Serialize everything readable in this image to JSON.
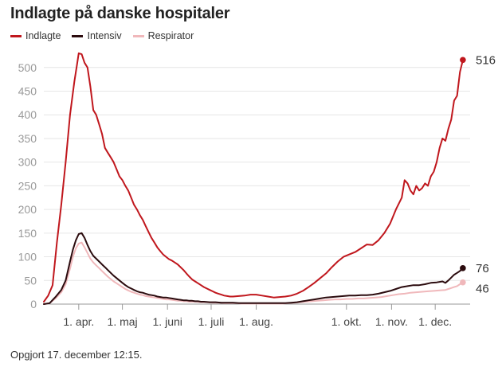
{
  "chart_data": {
    "type": "line",
    "title": "Indlagte på danske hospitaler",
    "footnote": "Opgjort 17. december 12:15.",
    "ylim": [
      0,
      540
    ],
    "y_ticks": [
      0,
      50,
      100,
      150,
      200,
      250,
      300,
      350,
      400,
      450,
      500
    ],
    "x_domain": [
      0,
      293
    ],
    "x_ticks": [
      {
        "day": 24,
        "label": "1. apr."
      },
      {
        "day": 54,
        "label": "1. maj"
      },
      {
        "day": 85,
        "label": "1. juni"
      },
      {
        "day": 115,
        "label": "1. juli"
      },
      {
        "day": 146,
        "label": "1. aug."
      },
      {
        "day": 208,
        "label": "1. okt."
      },
      {
        "day": 239,
        "label": "1. nov."
      },
      {
        "day": 269,
        "label": "1. dec."
      }
    ],
    "series": [
      {
        "name": "Indlagte",
        "color": "#c0171d",
        "end_label": "516",
        "points": [
          [
            0,
            5
          ],
          [
            3,
            18
          ],
          [
            6,
            40
          ],
          [
            9,
            130
          ],
          [
            12,
            210
          ],
          [
            15,
            300
          ],
          [
            18,
            400
          ],
          [
            21,
            470
          ],
          [
            23,
            510
          ],
          [
            24,
            530
          ],
          [
            26,
            528
          ],
          [
            28,
            510
          ],
          [
            30,
            500
          ],
          [
            32,
            460
          ],
          [
            34,
            410
          ],
          [
            36,
            400
          ],
          [
            38,
            380
          ],
          [
            40,
            360
          ],
          [
            42,
            330
          ],
          [
            44,
            320
          ],
          [
            46,
            310
          ],
          [
            48,
            300
          ],
          [
            50,
            285
          ],
          [
            52,
            270
          ],
          [
            54,
            262
          ],
          [
            56,
            250
          ],
          [
            58,
            240
          ],
          [
            60,
            225
          ],
          [
            62,
            210
          ],
          [
            64,
            200
          ],
          [
            66,
            188
          ],
          [
            68,
            178
          ],
          [
            70,
            165
          ],
          [
            72,
            152
          ],
          [
            74,
            140
          ],
          [
            76,
            130
          ],
          [
            78,
            120
          ],
          [
            80,
            112
          ],
          [
            82,
            105
          ],
          [
            84,
            100
          ],
          [
            86,
            95
          ],
          [
            88,
            92
          ],
          [
            90,
            88
          ],
          [
            92,
            84
          ],
          [
            94,
            78
          ],
          [
            96,
            72
          ],
          [
            98,
            65
          ],
          [
            100,
            58
          ],
          [
            102,
            52
          ],
          [
            104,
            48
          ],
          [
            106,
            44
          ],
          [
            108,
            40
          ],
          [
            110,
            36
          ],
          [
            112,
            33
          ],
          [
            114,
            30
          ],
          [
            116,
            27
          ],
          [
            118,
            24
          ],
          [
            120,
            22
          ],
          [
            122,
            20
          ],
          [
            124,
            18
          ],
          [
            126,
            17
          ],
          [
            128,
            16
          ],
          [
            130,
            16
          ],
          [
            134,
            17
          ],
          [
            138,
            18
          ],
          [
            142,
            20
          ],
          [
            146,
            20
          ],
          [
            150,
            18
          ],
          [
            154,
            16
          ],
          [
            158,
            14
          ],
          [
            162,
            15
          ],
          [
            166,
            16
          ],
          [
            170,
            18
          ],
          [
            174,
            22
          ],
          [
            178,
            28
          ],
          [
            182,
            36
          ],
          [
            186,
            45
          ],
          [
            190,
            55
          ],
          [
            194,
            65
          ],
          [
            198,
            78
          ],
          [
            202,
            90
          ],
          [
            206,
            100
          ],
          [
            210,
            105
          ],
          [
            214,
            110
          ],
          [
            218,
            118
          ],
          [
            222,
            126
          ],
          [
            226,
            125
          ],
          [
            230,
            135
          ],
          [
            234,
            150
          ],
          [
            238,
            170
          ],
          [
            242,
            200
          ],
          [
            246,
            225
          ],
          [
            248,
            262
          ],
          [
            250,
            255
          ],
          [
            252,
            240
          ],
          [
            254,
            232
          ],
          [
            256,
            250
          ],
          [
            258,
            240
          ],
          [
            260,
            245
          ],
          [
            262,
            255
          ],
          [
            264,
            250
          ],
          [
            266,
            270
          ],
          [
            268,
            280
          ],
          [
            270,
            300
          ],
          [
            272,
            330
          ],
          [
            274,
            350
          ],
          [
            276,
            345
          ],
          [
            278,
            370
          ],
          [
            280,
            390
          ],
          [
            282,
            430
          ],
          [
            284,
            440
          ],
          [
            286,
            490
          ],
          [
            288,
            516
          ]
        ]
      },
      {
        "name": "Intensiv",
        "color": "#2b0b0e",
        "end_label": "76",
        "points": [
          [
            0,
            0
          ],
          [
            4,
            2
          ],
          [
            8,
            15
          ],
          [
            12,
            30
          ],
          [
            15,
            50
          ],
          [
            18,
            90
          ],
          [
            20,
            115
          ],
          [
            22,
            135
          ],
          [
            24,
            148
          ],
          [
            26,
            150
          ],
          [
            28,
            140
          ],
          [
            30,
            125
          ],
          [
            32,
            112
          ],
          [
            34,
            102
          ],
          [
            36,
            96
          ],
          [
            38,
            90
          ],
          [
            40,
            84
          ],
          [
            42,
            78
          ],
          [
            44,
            72
          ],
          [
            46,
            66
          ],
          [
            48,
            60
          ],
          [
            50,
            55
          ],
          [
            52,
            50
          ],
          [
            54,
            45
          ],
          [
            56,
            40
          ],
          [
            58,
            36
          ],
          [
            60,
            33
          ],
          [
            62,
            30
          ],
          [
            64,
            27
          ],
          [
            66,
            25
          ],
          [
            68,
            24
          ],
          [
            70,
            22
          ],
          [
            72,
            20
          ],
          [
            74,
            19
          ],
          [
            76,
            18
          ],
          [
            78,
            16
          ],
          [
            80,
            15
          ],
          [
            82,
            14
          ],
          [
            84,
            14
          ],
          [
            86,
            13
          ],
          [
            88,
            12
          ],
          [
            90,
            11
          ],
          [
            92,
            10
          ],
          [
            94,
            9
          ],
          [
            96,
            8
          ],
          [
            98,
            8
          ],
          [
            100,
            7
          ],
          [
            102,
            7
          ],
          [
            104,
            6
          ],
          [
            106,
            6
          ],
          [
            108,
            5
          ],
          [
            110,
            5
          ],
          [
            114,
            4
          ],
          [
            118,
            4
          ],
          [
            122,
            3
          ],
          [
            126,
            3
          ],
          [
            130,
            3
          ],
          [
            134,
            2
          ],
          [
            138,
            2
          ],
          [
            142,
            2
          ],
          [
            146,
            2
          ],
          [
            150,
            2
          ],
          [
            154,
            2
          ],
          [
            158,
            2
          ],
          [
            162,
            2
          ],
          [
            166,
            2
          ],
          [
            170,
            3
          ],
          [
            174,
            4
          ],
          [
            178,
            6
          ],
          [
            182,
            8
          ],
          [
            186,
            10
          ],
          [
            190,
            12
          ],
          [
            194,
            14
          ],
          [
            198,
            15
          ],
          [
            202,
            16
          ],
          [
            206,
            17
          ],
          [
            210,
            18
          ],
          [
            214,
            18
          ],
          [
            218,
            19
          ],
          [
            222,
            19
          ],
          [
            226,
            20
          ],
          [
            230,
            22
          ],
          [
            234,
            25
          ],
          [
            238,
            28
          ],
          [
            242,
            32
          ],
          [
            246,
            36
          ],
          [
            250,
            38
          ],
          [
            254,
            40
          ],
          [
            258,
            40
          ],
          [
            262,
            42
          ],
          [
            266,
            45
          ],
          [
            270,
            46
          ],
          [
            274,
            48
          ],
          [
            276,
            45
          ],
          [
            278,
            50
          ],
          [
            280,
            56
          ],
          [
            282,
            62
          ],
          [
            284,
            66
          ],
          [
            286,
            70
          ],
          [
            288,
            76
          ]
        ]
      },
      {
        "name": "Respirator",
        "color": "#f0b8bb",
        "end_label": "46",
        "points": [
          [
            0,
            0
          ],
          [
            4,
            2
          ],
          [
            8,
            12
          ],
          [
            12,
            25
          ],
          [
            15,
            42
          ],
          [
            18,
            75
          ],
          [
            20,
            100
          ],
          [
            22,
            118
          ],
          [
            24,
            128
          ],
          [
            26,
            130
          ],
          [
            28,
            120
          ],
          [
            30,
            108
          ],
          [
            32,
            96
          ],
          [
            34,
            88
          ],
          [
            36,
            82
          ],
          [
            38,
            76
          ],
          [
            40,
            70
          ],
          [
            42,
            64
          ],
          [
            44,
            58
          ],
          [
            46,
            53
          ],
          [
            48,
            48
          ],
          [
            50,
            44
          ],
          [
            52,
            40
          ],
          [
            54,
            36
          ],
          [
            56,
            32
          ],
          [
            58,
            29
          ],
          [
            60,
            26
          ],
          [
            62,
            24
          ],
          [
            64,
            22
          ],
          [
            66,
            20
          ],
          [
            68,
            19
          ],
          [
            70,
            17
          ],
          [
            72,
            16
          ],
          [
            74,
            15
          ],
          [
            76,
            14
          ],
          [
            78,
            13
          ],
          [
            80,
            12
          ],
          [
            82,
            11
          ],
          [
            84,
            10
          ],
          [
            86,
            10
          ],
          [
            88,
            9
          ],
          [
            90,
            8
          ],
          [
            92,
            7
          ],
          [
            94,
            7
          ],
          [
            96,
            6
          ],
          [
            98,
            6
          ],
          [
            100,
            5
          ],
          [
            104,
            5
          ],
          [
            108,
            4
          ],
          [
            112,
            4
          ],
          [
            116,
            3
          ],
          [
            120,
            3
          ],
          [
            124,
            2
          ],
          [
            128,
            2
          ],
          [
            132,
            2
          ],
          [
            136,
            1
          ],
          [
            140,
            1
          ],
          [
            144,
            1
          ],
          [
            148,
            1
          ],
          [
            152,
            1
          ],
          [
            156,
            1
          ],
          [
            160,
            1
          ],
          [
            164,
            1
          ],
          [
            168,
            2
          ],
          [
            172,
            3
          ],
          [
            176,
            4
          ],
          [
            180,
            5
          ],
          [
            184,
            6
          ],
          [
            188,
            7
          ],
          [
            192,
            8
          ],
          [
            196,
            9
          ],
          [
            200,
            10
          ],
          [
            204,
            10
          ],
          [
            208,
            11
          ],
          [
            212,
            11
          ],
          [
            216,
            12
          ],
          [
            220,
            12
          ],
          [
            224,
            13
          ],
          [
            228,
            14
          ],
          [
            232,
            15
          ],
          [
            236,
            17
          ],
          [
            240,
            19
          ],
          [
            244,
            21
          ],
          [
            248,
            22
          ],
          [
            252,
            24
          ],
          [
            256,
            25
          ],
          [
            260,
            26
          ],
          [
            264,
            27
          ],
          [
            268,
            28
          ],
          [
            272,
            29
          ],
          [
            276,
            30
          ],
          [
            278,
            32
          ],
          [
            280,
            34
          ],
          [
            282,
            36
          ],
          [
            284,
            38
          ],
          [
            286,
            42
          ],
          [
            288,
            46
          ]
        ]
      }
    ]
  }
}
